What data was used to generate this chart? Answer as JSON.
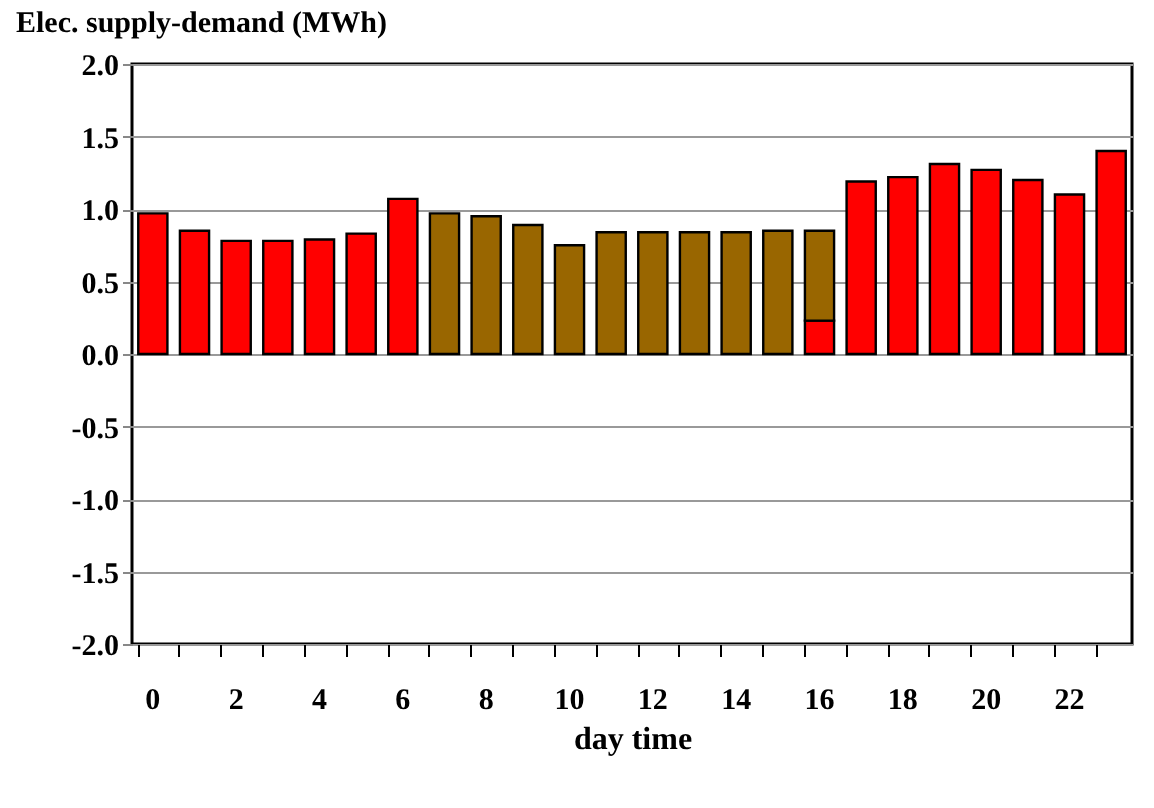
{
  "chart_data": {
    "type": "bar",
    "title": "Elec. supply-demand (MWh)",
    "xlabel": "day time",
    "categories": [
      "0",
      null,
      "2",
      null,
      "4",
      null,
      "6",
      null,
      "8",
      null,
      "10",
      null,
      "12",
      null,
      "14",
      null,
      "16",
      null,
      "18",
      null,
      "20",
      null,
      "22",
      null
    ],
    "series": [
      {
        "color": "#ff0000",
        "values": [
          0.97,
          0.85,
          0.78,
          0.78,
          0.79,
          0.83,
          1.07,
          null,
          null,
          null,
          null,
          null,
          null,
          null,
          null,
          null,
          0.23,
          1.19,
          1.22,
          1.31,
          1.27,
          1.2,
          1.1,
          1.4
        ]
      },
      {
        "color": "#996600",
        "values": [
          null,
          null,
          null,
          null,
          null,
          null,
          null,
          0.97,
          0.95,
          0.89,
          0.75,
          0.84,
          0.84,
          0.84,
          0.84,
          0.85,
          0.62,
          null,
          null,
          null,
          null,
          null,
          null,
          null
        ]
      }
    ],
    "stacked": true,
    "ylim": [
      -2,
      2
    ],
    "yticks": [
      {
        "value": -2,
        "label": "-2.0"
      },
      -1.5,
      {
        "value": -1,
        "label": "-1.0"
      },
      -0.5,
      {
        "value": 0,
        "label": "0.0"
      },
      0.5,
      {
        "value": 1,
        "label": "1.0"
      },
      1.5,
      {
        "value": 2,
        "label": "2.0"
      }
    ],
    "grid": "y",
    "legend": false
  }
}
